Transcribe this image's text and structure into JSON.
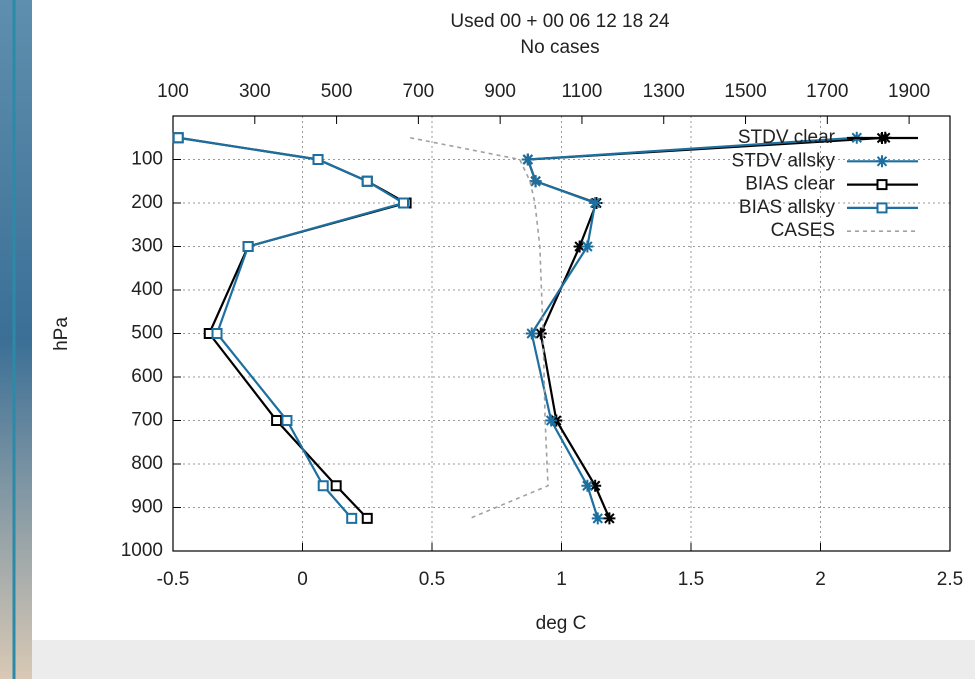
{
  "chart_data": {
    "type": "line",
    "title": "Used  00  + 00 06 12 18 24",
    "subtitle": "No cases",
    "xlabel": "deg C",
    "ylabel": "hPa",
    "levels": [
      50,
      100,
      150,
      200,
      300,
      500,
      700,
      850,
      925
    ],
    "xlim": [
      -0.5,
      2.5
    ],
    "xticks": [
      -0.5,
      0,
      0.5,
      1,
      1.5,
      2,
      2.5
    ],
    "x2lim": [
      100,
      2000
    ],
    "x2ticks": [
      100,
      300,
      500,
      700,
      900,
      1100,
      1300,
      1500,
      1700,
      1900
    ],
    "ylim": [
      1000,
      0
    ],
    "yticks": [
      100,
      200,
      300,
      400,
      500,
      600,
      700,
      800,
      900,
      1000
    ],
    "grid": true,
    "legend": "upper right",
    "series": [
      {
        "name": "STDV clear",
        "color": "#000000",
        "marker": "asterisk",
        "values": [
          2.25,
          0.87,
          0.9,
          1.135,
          1.07,
          0.92,
          0.98,
          1.13,
          1.185
        ]
      },
      {
        "name": "STDV allsky",
        "color": "#1c6f9f",
        "marker": "asterisk",
        "values": [
          2.14,
          0.87,
          0.9,
          1.13,
          1.1,
          0.885,
          0.96,
          1.1,
          1.14
        ]
      },
      {
        "name": "BIAS clear",
        "color": "#000000",
        "marker": "square",
        "values": [
          -0.48,
          0.06,
          0.25,
          0.4,
          -0.21,
          -0.36,
          -0.1,
          0.13,
          0.25
        ]
      },
      {
        "name": "BIAS allsky",
        "color": "#1c6f9f",
        "marker": "square",
        "values": [
          -0.48,
          0.06,
          0.25,
          0.39,
          -0.21,
          -0.33,
          -0.06,
          0.08,
          0.19
        ]
      },
      {
        "name": "CASES",
        "color": "#a0a0a0",
        "dashed": true,
        "axis": "x2",
        "values": [
          680,
          948,
          973,
          985,
          997,
          1005,
          1010,
          1017,
          826
        ]
      }
    ]
  }
}
